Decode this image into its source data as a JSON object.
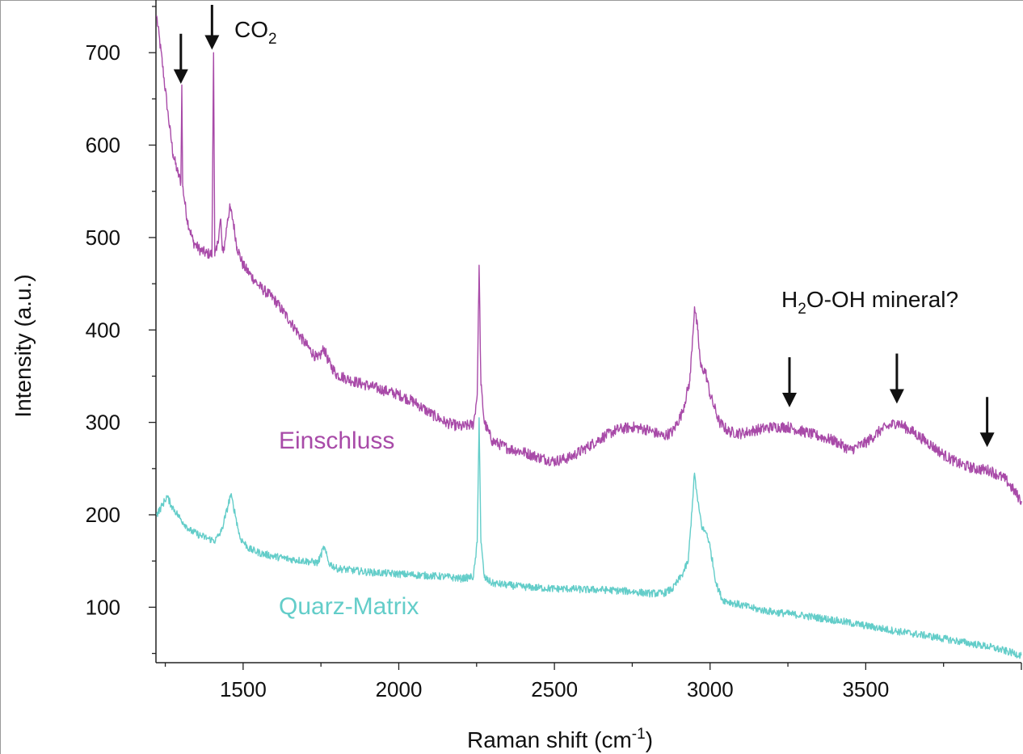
{
  "chart_data": {
    "type": "line",
    "title": "",
    "xlabel": "Raman shift (cm",
    "xlabel_sup": "-1",
    "xlabel_suffix": ")",
    "ylabel": "Intensity (a.u.)",
    "xlim": [
      1220,
      4000
    ],
    "ylim": [
      40,
      750
    ],
    "xticks": [
      1500,
      2000,
      2500,
      3000,
      3500
    ],
    "yticks": [
      100,
      200,
      300,
      400,
      500,
      600,
      700
    ],
    "grid": false,
    "series": [
      {
        "name": "Einschluss",
        "color": "#a84aa8",
        "noise": 6,
        "points": [
          [
            1222,
            740
          ],
          [
            1240,
            690
          ],
          [
            1260,
            630
          ],
          [
            1275,
            590
          ],
          [
            1290,
            570
          ],
          [
            1300,
            560
          ],
          [
            1303,
            665
          ],
          [
            1306,
            555
          ],
          [
            1320,
            520
          ],
          [
            1340,
            495
          ],
          [
            1360,
            487
          ],
          [
            1380,
            483
          ],
          [
            1400,
            482
          ],
          [
            1405,
            700
          ],
          [
            1409,
            480
          ],
          [
            1415,
            486
          ],
          [
            1428,
            520
          ],
          [
            1433,
            486
          ],
          [
            1440,
            490
          ],
          [
            1450,
            520
          ],
          [
            1458,
            532
          ],
          [
            1468,
            518
          ],
          [
            1480,
            490
          ],
          [
            1500,
            470
          ],
          [
            1550,
            448
          ],
          [
            1600,
            433
          ],
          [
            1650,
            410
          ],
          [
            1700,
            385
          ],
          [
            1740,
            368
          ],
          [
            1760,
            380
          ],
          [
            1775,
            365
          ],
          [
            1800,
            352
          ],
          [
            1850,
            345
          ],
          [
            1900,
            340
          ],
          [
            1950,
            335
          ],
          [
            2000,
            330
          ],
          [
            2050,
            322
          ],
          [
            2100,
            310
          ],
          [
            2150,
            300
          ],
          [
            2200,
            295
          ],
          [
            2240,
            298
          ],
          [
            2252,
            330
          ],
          [
            2258,
            470
          ],
          [
            2264,
            340
          ],
          [
            2275,
            300
          ],
          [
            2300,
            280
          ],
          [
            2350,
            272
          ],
          [
            2400,
            268
          ],
          [
            2450,
            262
          ],
          [
            2500,
            258
          ],
          [
            2550,
            262
          ],
          [
            2600,
            272
          ],
          [
            2650,
            283
          ],
          [
            2700,
            292
          ],
          [
            2750,
            295
          ],
          [
            2800,
            292
          ],
          [
            2850,
            285
          ],
          [
            2880,
            290
          ],
          [
            2910,
            310
          ],
          [
            2935,
            345
          ],
          [
            2950,
            425
          ],
          [
            2960,
            400
          ],
          [
            2970,
            360
          ],
          [
            2985,
            355
          ],
          [
            3000,
            330
          ],
          [
            3030,
            300
          ],
          [
            3060,
            290
          ],
          [
            3100,
            288
          ],
          [
            3150,
            292
          ],
          [
            3200,
            295
          ],
          [
            3250,
            295
          ],
          [
            3300,
            290
          ],
          [
            3350,
            285
          ],
          [
            3400,
            280
          ],
          [
            3450,
            270
          ],
          [
            3500,
            278
          ],
          [
            3550,
            292
          ],
          [
            3600,
            300
          ],
          [
            3650,
            290
          ],
          [
            3700,
            278
          ],
          [
            3750,
            265
          ],
          [
            3800,
            255
          ],
          [
            3850,
            250
          ],
          [
            3900,
            248
          ],
          [
            3950,
            238
          ],
          [
            4000,
            215
          ]
        ]
      },
      {
        "name": "Quarz-Matrix",
        "color": "#63cdc9",
        "noise": 4,
        "points": [
          [
            1222,
            200
          ],
          [
            1240,
            210
          ],
          [
            1255,
            220
          ],
          [
            1270,
            210
          ],
          [
            1300,
            195
          ],
          [
            1330,
            183
          ],
          [
            1360,
            178
          ],
          [
            1390,
            174
          ],
          [
            1410,
            172
          ],
          [
            1430,
            182
          ],
          [
            1448,
            205
          ],
          [
            1460,
            222
          ],
          [
            1472,
            205
          ],
          [
            1490,
            175
          ],
          [
            1520,
            163
          ],
          [
            1560,
            158
          ],
          [
            1600,
            155
          ],
          [
            1650,
            152
          ],
          [
            1700,
            150
          ],
          [
            1740,
            148
          ],
          [
            1760,
            165
          ],
          [
            1775,
            148
          ],
          [
            1800,
            142
          ],
          [
            1850,
            140
          ],
          [
            1900,
            138
          ],
          [
            1950,
            137
          ],
          [
            2000,
            136
          ],
          [
            2050,
            135
          ],
          [
            2100,
            134
          ],
          [
            2150,
            133
          ],
          [
            2200,
            131
          ],
          [
            2240,
            133
          ],
          [
            2252,
            170
          ],
          [
            2258,
            305
          ],
          [
            2264,
            170
          ],
          [
            2275,
            132
          ],
          [
            2300,
            126
          ],
          [
            2350,
            124
          ],
          [
            2400,
            122
          ],
          [
            2450,
            121
          ],
          [
            2500,
            120
          ],
          [
            2550,
            120
          ],
          [
            2600,
            119
          ],
          [
            2650,
            119
          ],
          [
            2700,
            118
          ],
          [
            2750,
            117
          ],
          [
            2800,
            115
          ],
          [
            2850,
            115
          ],
          [
            2880,
            120
          ],
          [
            2910,
            135
          ],
          [
            2930,
            150
          ],
          [
            2950,
            245
          ],
          [
            2960,
            215
          ],
          [
            2975,
            185
          ],
          [
            2990,
            180
          ],
          [
            3000,
            165
          ],
          [
            3020,
            125
          ],
          [
            3040,
            108
          ],
          [
            3080,
            104
          ],
          [
            3150,
            98
          ],
          [
            3200,
            95
          ],
          [
            3300,
            91
          ],
          [
            3400,
            86
          ],
          [
            3500,
            80
          ],
          [
            3600,
            74
          ],
          [
            3700,
            69
          ],
          [
            3800,
            63
          ],
          [
            3900,
            57
          ],
          [
            4000,
            48
          ]
        ]
      }
    ],
    "annotations": {
      "co2": {
        "text": "CO",
        "sub": "2"
      },
      "water": {
        "text_h": "H",
        "text_sub": "2",
        "text_rest": "O-OH mineral?"
      },
      "arrows": [
        {
          "x": 1300,
          "tip": 668
        },
        {
          "x": 1400,
          "tip": 705
        },
        {
          "x": 3255,
          "tip": 318
        },
        {
          "x": 3600,
          "tip": 322
        },
        {
          "x": 3890,
          "tip": 275
        }
      ]
    },
    "series_label_einschluss": "Einschluss",
    "series_label_quarz": "Quarz-Matrix"
  }
}
